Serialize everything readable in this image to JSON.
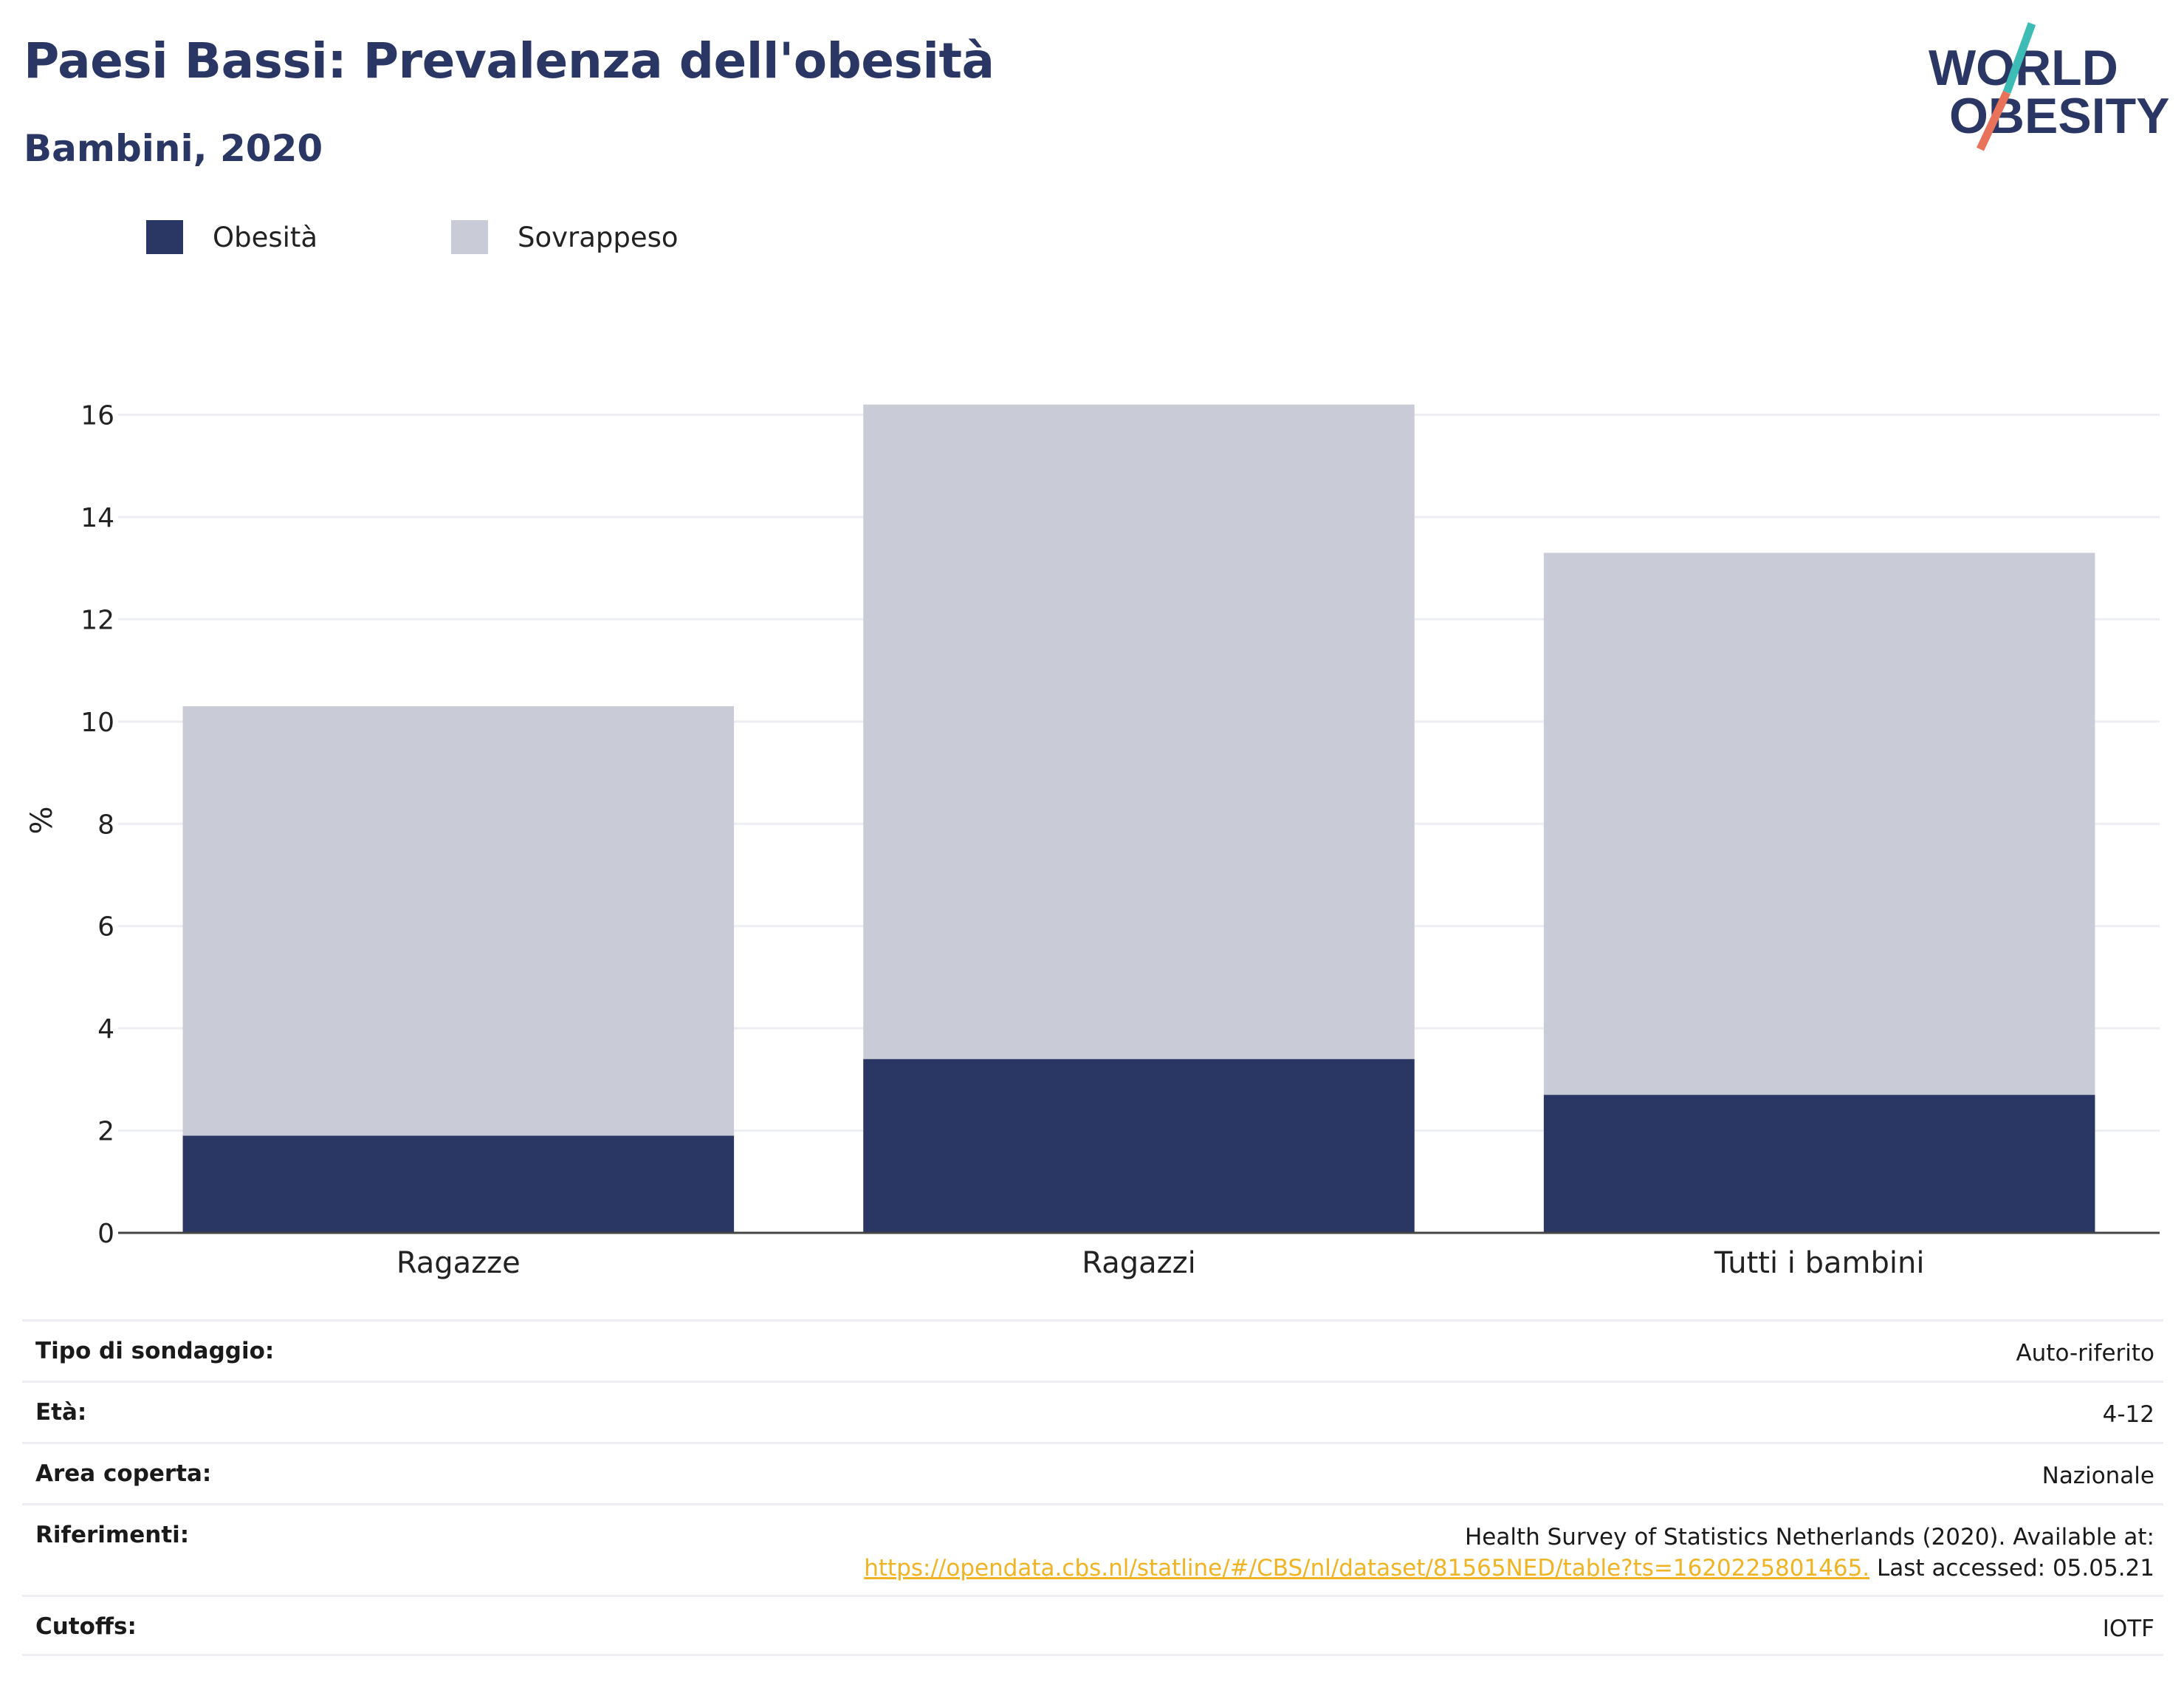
{
  "header": {
    "title": "Paesi Bassi: Prevalenza dell'obesità",
    "subtitle": "Bambini, 2020"
  },
  "logo": {
    "line1": "WORLD",
    "line2": "OBESITY",
    "colors": {
      "navy": "#2a3764",
      "teal": "#3cbcb4",
      "coral": "#e8735a"
    }
  },
  "chart_data": {
    "type": "bar",
    "stacked": true,
    "categories": [
      "Ragazze",
      "Ragazzi",
      "Tutti i bambini"
    ],
    "series": [
      {
        "name": "Obesità",
        "color": "#2a3764",
        "values": [
          1.9,
          3.4,
          2.7
        ]
      },
      {
        "name": "Sovrappeso",
        "color": "#c9cbd7",
        "values": [
          8.4,
          12.8,
          10.6
        ]
      }
    ],
    "ylabel": "%",
    "ylim": [
      0,
      16.6
    ],
    "yticks": [
      0,
      2,
      4,
      6,
      8,
      10,
      12,
      14,
      16
    ],
    "grid": true,
    "legend_position": "top-left"
  },
  "info": {
    "rows": [
      {
        "label": "Tipo di sondaggio:",
        "value": "Auto-riferito"
      },
      {
        "label": "Età:",
        "value": "4-12"
      },
      {
        "label": "Area coperta:",
        "value": "Nazionale"
      },
      {
        "label": "Riferimenti:",
        "value_line1": "Health Survey of Statistics Netherlands (2020). Available at:",
        "link": "https://opendata.cbs.nl/statline/#/CBS/nl/dataset/81565NED/table?ts=1620225801465.",
        "value_line2_suffix": " Last accessed: 05.05.21"
      },
      {
        "label": "Cutoffs:",
        "value": "IOTF"
      }
    ]
  }
}
